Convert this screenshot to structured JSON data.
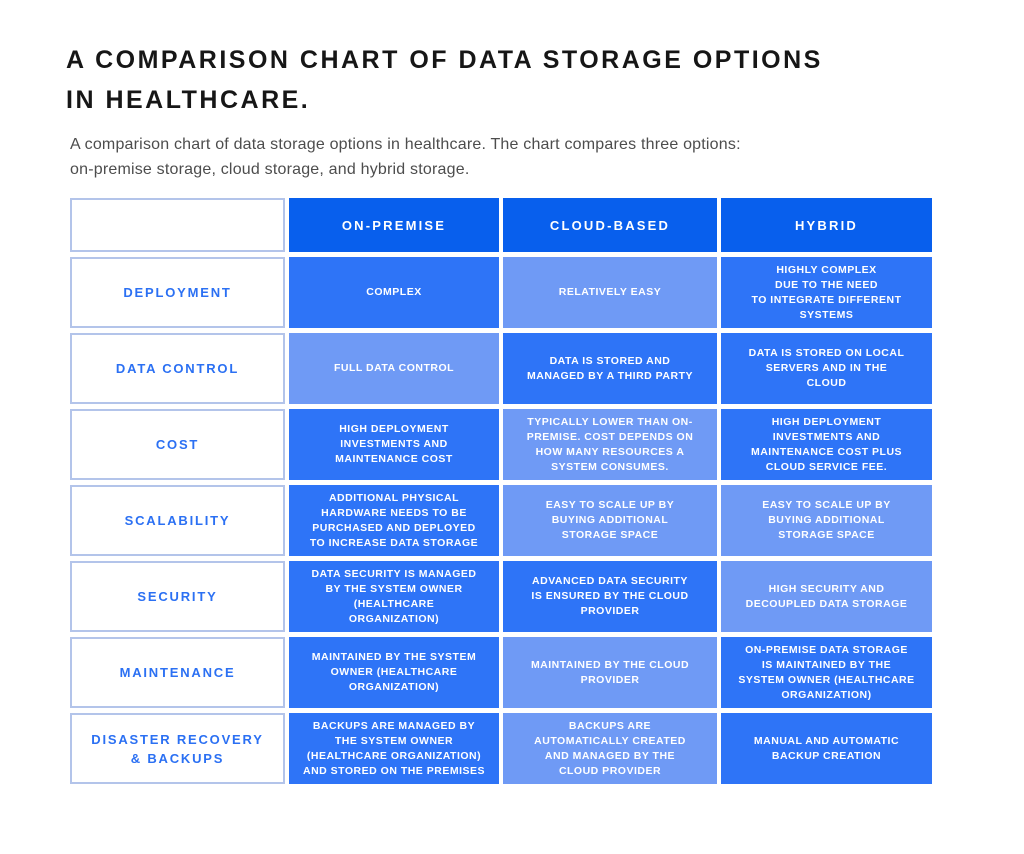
{
  "page": {
    "title": "A COMPARISON CHART OF DATA STORAGE OPTIONS\nIN HEALTHCARE.",
    "subtitle": "A comparison chart of data storage options in healthcare. The chart compares three options:\non-premise storage, cloud storage, and hybrid storage."
  },
  "colors": {
    "title_text": "#161616",
    "subtitle_text": "#4d4d4d",
    "header_bg": "#085fed",
    "cell_medium": "#2e74f7",
    "cell_light": "#6f9af5",
    "cell_text": "#ffffff",
    "label_text": "#2b70f3",
    "label_border": "#b3c4ea"
  },
  "chart_data": {
    "type": "table",
    "title": "A COMPARISON CHART OF DATA STORAGE OPTIONS IN HEALTHCARE.",
    "columns": [
      "ON-PREMISE",
      "CLOUD-BASED",
      "HYBRID"
    ],
    "row_labels": [
      "DEPLOYMENT",
      "DATA CONTROL",
      "COST",
      "SCALABILITY",
      "SECURITY",
      "MAINTENANCE",
      "DISASTER RECOVERY\n& BACKUPS"
    ],
    "cells": [
      [
        "COMPLEX",
        "RELATIVELY EASY",
        "HIGHLY COMPLEX\nDUE TO THE NEED\nTO INTEGRATE DIFFERENT\nSYSTEMS"
      ],
      [
        "FULL DATA CONTROL",
        "DATA IS STORED AND\nMANAGED BY A THIRD PARTY",
        "DATA IS STORED ON LOCAL\nSERVERS AND IN THE\nCLOUD"
      ],
      [
        "HIGH DEPLOYMENT\nINVESTMENTS AND\nMAINTENANCE COST",
        "TYPICALLY LOWER THAN ON-\nPREMISE. COST DEPENDS ON\nHOW MANY RESOURCES A\nSYSTEM CONSUMES.",
        "HIGH DEPLOYMENT\nINVESTMENTS AND\nMAINTENANCE COST PLUS\nCLOUD SERVICE FEE."
      ],
      [
        "ADDITIONAL PHYSICAL\nHARDWARE NEEDS TO BE\nPURCHASED AND DEPLOYED\nTO INCREASE DATA STORAGE",
        "EASY TO SCALE UP BY\nBUYING ADDITIONAL\nSTORAGE SPACE",
        "EASY TO SCALE UP BY\nBUYING ADDITIONAL\nSTORAGE SPACE"
      ],
      [
        "DATA SECURITY IS MANAGED\nBY THE SYSTEM OWNER\n(HEALTHCARE\nORGANIZATION)",
        "ADVANCED DATA SECURITY\nIS ENSURED BY THE CLOUD\nPROVIDER",
        "HIGH SECURITY AND\nDECOUPLED DATA STORAGE"
      ],
      [
        "MAINTAINED BY THE SYSTEM\nOWNER (HEALTHCARE\nORGANIZATION)",
        "MAINTAINED BY THE CLOUD\nPROVIDER",
        "ON-PREMISE DATA STORAGE\nIS MAINTAINED BY THE\nSYSTEM OWNER (HEALTHCARE\nORGANIZATION)"
      ],
      [
        "BACKUPS ARE MANAGED BY\nTHE SYSTEM OWNER\n(HEALTHCARE ORGANIZATION)\nAND STORED ON THE PREMISES",
        "BACKUPS ARE\nAUTOMATICALLY CREATED\nAND MANAGED BY THE\nCLOUD PROVIDER",
        "MANUAL AND AUTOMATIC\nBACKUP CREATION"
      ]
    ],
    "cell_tones": [
      [
        "medium",
        "light",
        "medium"
      ],
      [
        "light",
        "medium",
        "medium"
      ],
      [
        "medium",
        "light",
        "medium"
      ],
      [
        "medium",
        "light",
        "light"
      ],
      [
        "medium",
        "medium",
        "light"
      ],
      [
        "medium",
        "light",
        "medium"
      ],
      [
        "medium",
        "light",
        "medium"
      ]
    ],
    "layout_hints": {
      "grid": "off",
      "legend": "none"
    }
  }
}
